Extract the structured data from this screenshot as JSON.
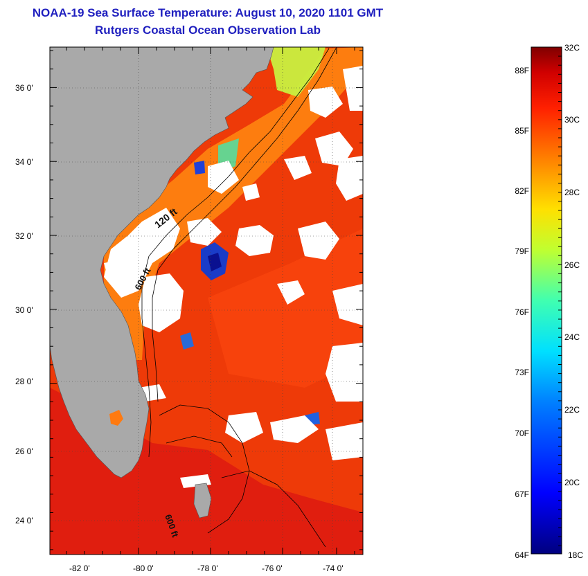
{
  "title": {
    "line1": "NOAA-19 Sea Surface Temperature:  August 10, 2020 1101 GMT",
    "line2": "Rutgers Coastal Ocean Observation Lab"
  },
  "map": {
    "lon_ticks": [
      "-82 0'",
      "-80 0'",
      "-78 0'",
      "-76 0'",
      "-74 0'"
    ],
    "lat_ticks": [
      "36 0'",
      "34 0'",
      "32 0'",
      "30 0'",
      "28 0'",
      "26 0'",
      "24 0'"
    ],
    "isobath_labels": [
      "120 ft",
      "600 ft",
      "600 ft"
    ],
    "colors": {
      "land": "#a9a9a9",
      "cloud": "#ffffff",
      "ocean_warm": "#ee3300"
    }
  },
  "colorbar": {
    "celsius_labels": [
      "32C",
      "30C",
      "28C",
      "26C",
      "24C",
      "22C",
      "20C",
      "18C"
    ],
    "fahrenheit_labels": [
      "88F",
      "85F",
      "82F",
      "79F",
      "76F",
      "73F",
      "70F",
      "67F",
      "64F"
    ],
    "celsius_range": [
      18,
      32
    ]
  }
}
